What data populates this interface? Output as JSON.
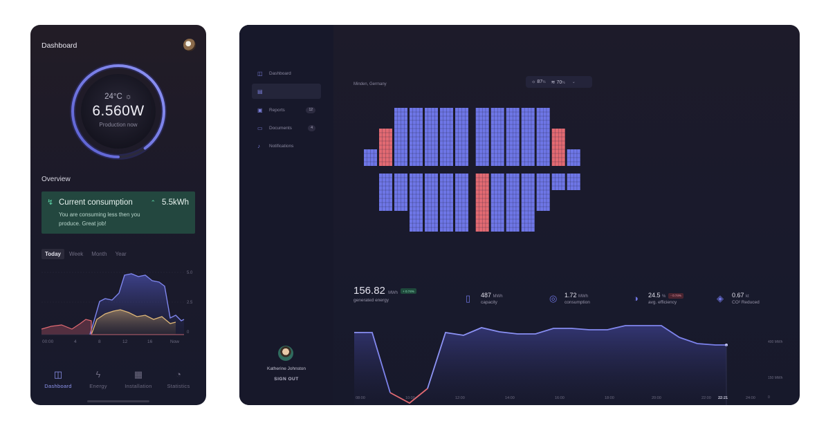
{
  "phone": {
    "title": "Dashboard",
    "gauge": {
      "temp": "24°C",
      "value": "6.560W",
      "subtitle": "Production now",
      "progress": 0.9
    },
    "overview_label": "Overview",
    "consumption": {
      "title": "Current consumption",
      "value": "5.5kWh",
      "description": "You are consuming less then you produce. Great job!"
    },
    "tabs": [
      "Today",
      "Week",
      "Month",
      "Year"
    ],
    "active_tab": "Today",
    "chart": {
      "x_ticks": [
        "00:00",
        "4",
        "8",
        "12",
        "16",
        "Now"
      ],
      "y_ticks": [
        "5.0",
        "2.5",
        "0"
      ]
    },
    "nav": [
      {
        "label": "Dashboard",
        "icon": "dashboard-icon"
      },
      {
        "label": "Energy",
        "icon": "bolt-icon"
      },
      {
        "label": "Installation",
        "icon": "grid-icon"
      },
      {
        "label": "Statistics",
        "icon": "gauge-icon"
      }
    ],
    "active_nav": "Dashboard"
  },
  "tablet": {
    "sidebar": [
      {
        "label": "Dashboard",
        "icon": "dashboard-icon",
        "badge": ""
      },
      {
        "label": "",
        "icon": "solar-panel-icon",
        "badge": ""
      },
      {
        "label": "Reports",
        "icon": "report-icon",
        "badge": "12"
      },
      {
        "label": "Documents",
        "icon": "document-icon",
        "badge": "4"
      },
      {
        "label": "Notifications",
        "icon": "bell-icon",
        "badge": ""
      }
    ],
    "user": {
      "name": "Katherine Johnston",
      "signout": "SIGN OUT"
    },
    "location": "Minden, Germany",
    "weather": {
      "sun": "87",
      "wind": "70",
      "unit": "%"
    },
    "stats": {
      "energy": {
        "value": "156.82",
        "unit": "MWh",
        "label": "generated energy",
        "tag": "+ 0.74%"
      },
      "capacity": {
        "value": "487",
        "unit": "MWh",
        "label": "capacity"
      },
      "consumption": {
        "value": "1.72",
        "unit": "MWh",
        "label": "consumption"
      },
      "efficiency": {
        "value": "24.5",
        "unit": "%",
        "label": "avg. efficiency",
        "tag": "- 0.74%"
      },
      "co2": {
        "value": "0.67",
        "unit": "kt",
        "label": "CO² Reduced"
      }
    },
    "chart": {
      "x_ticks": [
        "08:00",
        "10:00",
        "12:00",
        "14:00",
        "16:00",
        "18:00",
        "20:00",
        "22:00",
        "22:21",
        "24:00"
      ],
      "y_ticks": [
        "400 MWh",
        "150 MWh",
        "0"
      ]
    }
  },
  "colors": {
    "accent": "#7a80f0",
    "panel": "#6e76e6",
    "alert": "#e26a72",
    "good": "#5ed3a6"
  }
}
